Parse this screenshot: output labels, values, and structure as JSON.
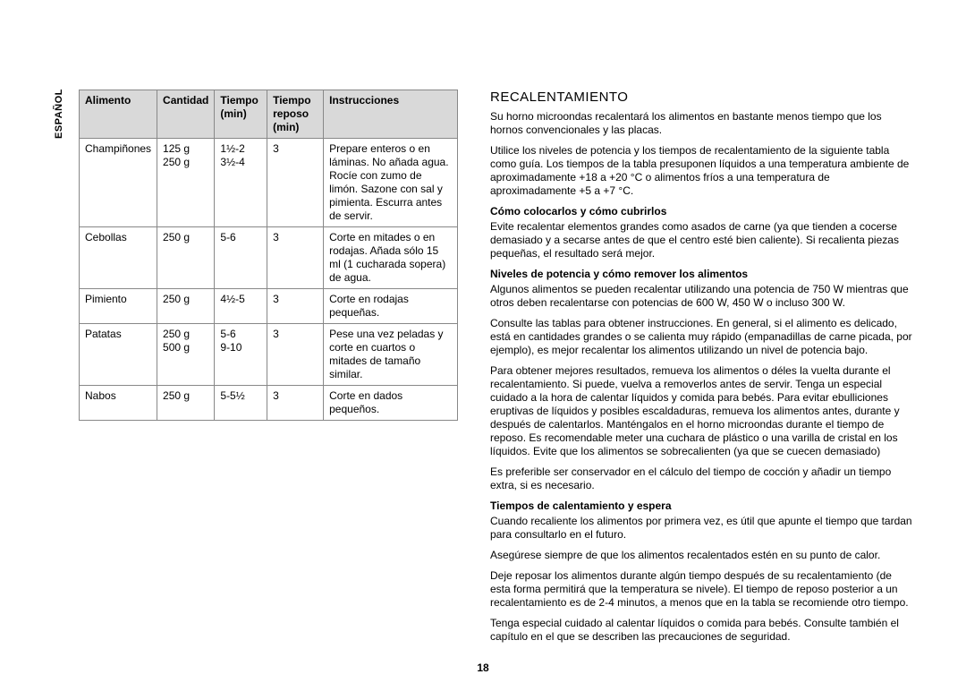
{
  "sidetab": "ESPAÑOL",
  "page_number": "18",
  "table": {
    "headers": {
      "food": "Alimento",
      "qty": "Cantidad",
      "time": "Tiempo (min)",
      "rest": "Tiempo reposo (min)",
      "instr": "Instrucciones"
    },
    "rows": [
      {
        "food": "Champiñones",
        "qty": "125 g\n250 g",
        "time": "1½-2\n3½-4",
        "rest": "3",
        "instr": "Prepare enteros o en láminas. No añada agua. Rocíe con zumo de limón. Sazone con sal y pimienta. Escurra antes de servir."
      },
      {
        "food": "Cebollas",
        "qty": "250 g",
        "time": "5-6",
        "rest": "3",
        "instr": "Corte en mitades o en rodajas. Añada sólo 15 ml (1 cucharada sopera) de agua."
      },
      {
        "food": "Pimiento",
        "qty": "250 g",
        "time": "4½-5",
        "rest": "3",
        "instr": "Corte en rodajas pequeñas."
      },
      {
        "food": "Patatas",
        "qty": "250 g\n500 g",
        "time": "5-6\n9-10",
        "rest": "3",
        "instr": "Pese una vez peladas y corte en cuartos o mitades de tamaño similar."
      },
      {
        "food": "Nabos",
        "qty": "250 g",
        "time": "5-5½",
        "rest": "3",
        "instr": "Corte en dados pequeños."
      }
    ]
  },
  "right": {
    "title": "RECALENTAMIENTO",
    "intro1": "Su horno microondas recalentará los alimentos en bastante menos tiempo que los hornos convencionales y las placas.",
    "intro2": "Utilice los niveles de potencia y los tiempos de recalentamiento de la siguiente tabla como guía. Los tiempos de la tabla presuponen líquidos a una temperatura ambiente de aproximadamente +18 a +20 °C o alimentos fríos a una temperatura de aproximadamente +5 a +7 °C.",
    "sub1": "Cómo colocarlos y cómo cubrirlos",
    "p1a": "Evite recalentar elementos grandes como asados de carne (ya que tienden a cocerse demasiado y a secarse antes de que el centro esté bien caliente). Si recalienta piezas pequeñas, el resultado será mejor.",
    "sub2": "Niveles de potencia y cómo remover los alimentos",
    "p2a": "Algunos alimentos se pueden recalentar utilizando una potencia de 750 W mientras que otros deben recalentarse con potencias de 600 W, 450 W o incluso 300 W.",
    "p2b": "Consulte las tablas para obtener instrucciones. En general, si el alimento es delicado, está en cantidades grandes o se calienta muy rápido (empanadillas de carne picada, por ejemplo), es mejor recalentar los alimentos utilizando un nivel de potencia bajo.",
    "p2c": "Para obtener mejores resultados, remueva los alimentos o déles la vuelta durante el recalentamiento. Si puede, vuelva a removerlos antes de servir. Tenga un especial cuidado a la hora de calentar líquidos y comida para bebés. Para evitar ebulliciones eruptivas de líquidos y posibles escaldaduras, remueva los alimentos antes, durante y después de calentarlos. Manténgalos en el horno microondas durante el tiempo de reposo. Es recomendable meter una cuchara de plástico o una varilla de cristal en los líquidos. Evite que los alimentos se sobrecalienten (ya que se cuecen demasiado)",
    "p2d": "Es preferible ser conservador en el cálculo del tiempo de cocción y añadir un tiempo extra, si es necesario.",
    "sub3": "Tiempos de calentamiento y espera",
    "p3a": "Cuando recaliente los alimentos por primera vez, es útil que apunte el tiempo que tardan para consultarlo en el futuro.",
    "p3b": "Asegúrese siempre de que los alimentos recalentados estén en su punto de calor.",
    "p3c": "Deje reposar los alimentos durante algún tiempo después de su recalentamiento (de esta forma permitirá que la temperatura se nivele). El tiempo de reposo posterior a un recalentamiento es de 2-4 minutos, a menos que en la tabla se recomiende otro tiempo.",
    "p3d": "Tenga especial cuidado al calentar líquidos o comida para bebés. Consulte también el capítulo en el que se describen las precauciones de seguridad."
  }
}
